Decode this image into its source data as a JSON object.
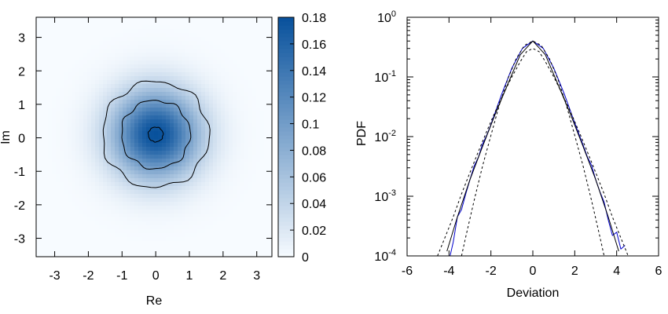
{
  "chart_data": [
    {
      "type": "heatmap",
      "title": "",
      "xlabel": "Re",
      "ylabel": "Im",
      "xlim": [
        -3.55,
        3.45
      ],
      "ylim": [
        -3.55,
        3.6
      ],
      "x_ticks": [
        -3,
        -2,
        -1,
        0,
        1,
        2,
        3
      ],
      "y_ticks": [
        -3,
        -2,
        -1,
        0,
        1,
        2,
        3
      ],
      "x_tick_labels": [
        "-3",
        "-2",
        "-1",
        "0",
        "1",
        "2",
        "3"
      ],
      "y_tick_labels": [
        "-3",
        "-2",
        "-1",
        "0",
        "1",
        "2",
        "3"
      ],
      "density_peak": 0.18,
      "density_center": [
        0.0,
        0.1
      ],
      "density_sigma": 0.92,
      "contour_radii": [
        0.22,
        1.02,
        1.58
      ],
      "colorbar": {
        "range": [
          0,
          0.18
        ],
        "ticks": [
          0,
          0.02,
          0.04,
          0.06,
          0.08,
          0.1,
          0.12,
          0.14,
          0.16,
          0.18
        ],
        "tick_labels": [
          "0",
          "0.02",
          "0.04",
          "0.06",
          "0.08",
          "0.1",
          "0.12",
          "0.14",
          "0.16",
          "0.18"
        ],
        "color_low": "#f7fbff",
        "color_high": "#08519c"
      }
    },
    {
      "type": "line",
      "title": "",
      "xlabel": "Deviation",
      "ylabel": "PDF",
      "xlim": [
        -6,
        6
      ],
      "ylim": [
        0.0001,
        1
      ],
      "log_y": true,
      "x_ticks": [
        -6,
        -4,
        -2,
        0,
        2,
        4,
        6
      ],
      "x_tick_labels": [
        "-6",
        "-4",
        "-2",
        "0",
        "2",
        "4",
        "6"
      ],
      "y_tick_labels": [
        {
          "base": "10",
          "exp": "-4"
        },
        {
          "base": "10",
          "exp": "-3"
        },
        {
          "base": "10",
          "exp": "-2"
        },
        {
          "base": "10",
          "exp": "-1"
        },
        {
          "base": "10",
          "exp": "0"
        }
      ],
      "series": [
        {
          "style": "blue-noisy",
          "color": "#0000cc",
          "x": [
            -3.95,
            -3.8,
            -3.6,
            -3.4,
            -3.2,
            -3.0,
            -2.8,
            -2.6,
            -2.4,
            -2.2,
            -2.0,
            -1.5,
            -1.0,
            -0.5,
            0.0,
            0.5,
            1.0,
            1.5,
            2.0,
            2.2,
            2.4,
            2.6,
            2.8,
            3.0,
            3.2,
            3.4,
            3.6,
            3.8,
            4.0,
            4.2,
            4.4
          ],
          "y": [
            0.0001,
            0.00017,
            0.00045,
            0.0006,
            0.0011,
            0.0019,
            0.0032,
            0.0045,
            0.0075,
            0.0105,
            0.016,
            0.05,
            0.14,
            0.3,
            0.4,
            0.3,
            0.14,
            0.052,
            0.017,
            0.011,
            0.0072,
            0.0046,
            0.0033,
            0.0019,
            0.0012,
            0.0008,
            0.0004,
            0.00022,
            0.00025,
            0.00013,
            0.00015
          ]
        },
        {
          "style": "black-solid",
          "color": "#000000",
          "x": [
            -4.1,
            -3.6,
            -3.0,
            -2.4,
            -1.8,
            -1.2,
            -0.6,
            0.0,
            0.6,
            1.2,
            1.8,
            2.4,
            3.0,
            3.6,
            4.1
          ],
          "y": [
            0.00012,
            0.00045,
            0.0019,
            0.0068,
            0.0235,
            0.075,
            0.235,
            0.4,
            0.235,
            0.075,
            0.0235,
            0.0068,
            0.0019,
            0.00045,
            0.00012
          ]
        },
        {
          "style": "dashed-narrow",
          "color": "#000000",
          "x": [
            -3.4,
            -3.2,
            -2.8,
            -2.4,
            -2.0,
            -1.6,
            -1.2,
            -0.8,
            -0.4,
            0.0,
            0.4,
            0.8,
            1.2,
            1.6,
            2.0,
            2.4,
            2.8,
            3.2,
            3.4
          ],
          "y": [
            0.0001,
            0.00021,
            0.00085,
            0.0032,
            0.0105,
            0.0335,
            0.0915,
            0.2,
            0.338,
            0.4,
            0.338,
            0.2,
            0.0915,
            0.0335,
            0.0105,
            0.0032,
            0.00085,
            0.00021,
            0.0001
          ]
        },
        {
          "style": "dashed-wide",
          "color": "#000000",
          "x": [
            -4.55,
            -4.2,
            -3.8,
            -3.4,
            -3.0,
            -2.6,
            -2.2,
            -1.8,
            -1.4,
            -1.0,
            -0.6,
            -0.3,
            0.0,
            0.3,
            0.6,
            1.0,
            1.4,
            1.8,
            2.2,
            2.6,
            3.0,
            3.4,
            3.8,
            4.2,
            4.55
          ],
          "y": [
            0.0001,
            0.0002,
            0.00045,
            0.0011,
            0.0025,
            0.0056,
            0.0122,
            0.026,
            0.052,
            0.1,
            0.18,
            0.265,
            0.3,
            0.265,
            0.18,
            0.1,
            0.052,
            0.026,
            0.0122,
            0.0056,
            0.0025,
            0.0011,
            0.00045,
            0.0002,
            0.0001
          ]
        }
      ]
    }
  ]
}
